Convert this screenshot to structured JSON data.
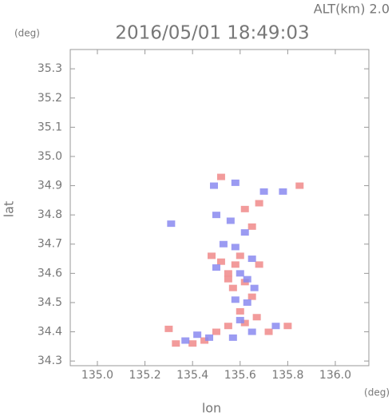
{
  "chart_data": {
    "type": "scatter",
    "title": "2016/05/01 18:49:03",
    "annotation": "ALT(km) 2.0",
    "y_unit": "(deg)",
    "x_unit": "(deg)",
    "xlabel": "lon",
    "ylabel": "lat",
    "xlim": [
      134.886,
      136.141
    ],
    "ylim": [
      34.284,
      35.366
    ],
    "xticks": [
      {
        "value": 135,
        "label": "135.0"
      },
      135.2,
      135.4,
      135.6,
      135.8,
      {
        "value": 136,
        "label": "136.0"
      }
    ],
    "yticks": [
      34.3,
      34.4,
      34.5,
      34.6,
      34.7,
      34.8,
      34.9,
      {
        "value": 35,
        "label": "35.0"
      },
      35.1,
      35.2,
      35.3
    ],
    "series": [
      {
        "color": "#f08a8a",
        "x": [
          135.52,
          135.62,
          135.68,
          135.85,
          135.48,
          135.52,
          135.58,
          135.6,
          135.55,
          135.62,
          135.57,
          135.65,
          135.6,
          135.62,
          135.67,
          135.55,
          135.5,
          135.45,
          135.4,
          135.33,
          135.3,
          135.8,
          135.72,
          135.55,
          135.68,
          135.65
        ],
        "values": [
          34.93,
          34.82,
          34.84,
          34.9,
          34.66,
          34.64,
          34.63,
          34.66,
          34.6,
          34.57,
          34.55,
          34.52,
          34.47,
          34.43,
          34.45,
          34.42,
          34.4,
          34.37,
          34.36,
          34.36,
          34.41,
          34.42,
          34.4,
          34.58,
          34.63,
          34.76
        ]
      },
      {
        "color": "#8a8af0",
        "x": [
          135.49,
          135.58,
          135.7,
          135.78,
          135.5,
          135.56,
          135.62,
          135.53,
          135.58,
          135.65,
          135.5,
          135.6,
          135.63,
          135.58,
          135.63,
          135.6,
          135.65,
          135.57,
          135.47,
          135.42,
          135.37,
          135.75,
          135.31,
          135.66
        ],
        "values": [
          34.9,
          34.91,
          34.88,
          34.88,
          34.8,
          34.78,
          34.74,
          34.7,
          34.69,
          34.65,
          34.62,
          34.6,
          34.58,
          34.51,
          34.5,
          34.44,
          34.4,
          34.38,
          34.38,
          34.39,
          34.37,
          34.42,
          34.77,
          34.55
        ]
      }
    ]
  }
}
